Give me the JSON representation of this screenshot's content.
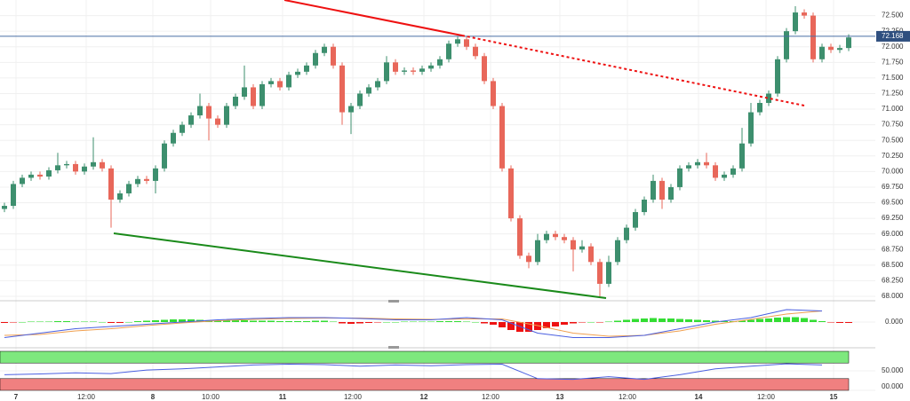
{
  "chart_data": [
    {
      "type": "candlestick",
      "up_color": "#3d8f6e",
      "down_color": "#e8675a",
      "open": [
        69.4,
        69.45,
        69.8,
        69.9,
        69.95,
        69.92,
        70.02,
        70.1,
        70.12,
        70.0,
        70.08,
        70.15,
        70.05,
        69.55,
        69.65,
        69.8,
        69.88,
        69.85,
        70.05,
        70.45,
        70.62,
        70.75,
        70.9,
        71.05,
        70.85,
        70.75,
        71.05,
        71.2,
        71.35,
        71.05,
        71.4,
        71.45,
        71.35,
        71.55,
        71.6,
        71.7,
        71.9,
        72.0,
        71.7,
        70.95,
        71.05,
        71.25,
        71.35,
        71.45,
        71.75,
        71.6,
        71.62,
        71.6,
        71.65,
        71.7,
        71.8,
        72.05,
        72.12,
        72.0,
        71.85,
        71.45,
        71.05,
        70.05,
        69.25,
        68.65,
        68.55,
        68.9,
        69.0,
        68.95,
        68.9,
        68.75,
        68.8,
        68.55,
        68.2,
        68.55,
        68.9,
        69.1,
        69.35,
        69.55,
        69.85,
        69.55,
        69.75,
        70.05,
        70.1,
        70.15,
        70.1,
        69.9,
        69.95,
        70.05,
        70.45,
        70.95,
        71.1,
        71.25,
        71.8,
        72.25,
        72.55,
        72.5,
        71.8,
        72.0,
        71.95,
        71.98
      ],
      "high": [
        69.5,
        69.85,
        69.95,
        70.0,
        70.0,
        70.07,
        70.3,
        70.17,
        70.17,
        70.13,
        70.55,
        70.2,
        70.1,
        69.7,
        69.85,
        69.93,
        69.93,
        70.1,
        70.5,
        70.67,
        70.8,
        70.95,
        71.25,
        71.1,
        70.9,
        71.1,
        71.25,
        71.7,
        71.4,
        71.45,
        71.5,
        71.5,
        71.6,
        71.65,
        71.75,
        71.95,
        72.05,
        72.05,
        71.75,
        71.1,
        71.3,
        71.4,
        71.5,
        71.85,
        71.8,
        71.67,
        71.67,
        71.7,
        71.75,
        71.85,
        72.1,
        72.17,
        72.17,
        72.05,
        71.9,
        71.5,
        71.1,
        70.1,
        69.3,
        68.7,
        69.0,
        69.05,
        69.05,
        69.0,
        68.95,
        68.9,
        68.85,
        68.6,
        68.65,
        68.95,
        69.15,
        69.4,
        69.6,
        69.95,
        69.9,
        69.8,
        70.1,
        70.15,
        70.2,
        70.3,
        70.15,
        70.0,
        70.1,
        70.7,
        71.1,
        71.15,
        71.3,
        71.85,
        72.3,
        72.65,
        72.6,
        72.55,
        72.05,
        72.05,
        72.03,
        72.2
      ],
      "low": [
        69.35,
        69.4,
        69.75,
        69.85,
        69.87,
        69.87,
        69.97,
        70.05,
        69.95,
        69.95,
        70.03,
        70.0,
        69.1,
        69.5,
        69.6,
        69.75,
        69.8,
        69.65,
        70.0,
        70.4,
        70.57,
        70.7,
        70.85,
        70.5,
        70.7,
        70.7,
        71.0,
        71.15,
        71.0,
        71.0,
        71.35,
        71.3,
        71.3,
        71.5,
        71.55,
        71.65,
        71.85,
        71.65,
        70.75,
        70.6,
        71.0,
        71.2,
        71.3,
        71.4,
        71.55,
        71.55,
        71.55,
        71.55,
        71.6,
        71.65,
        71.75,
        72.0,
        71.95,
        71.8,
        71.4,
        71.0,
        70.0,
        69.2,
        68.6,
        68.45,
        68.5,
        68.85,
        68.9,
        68.85,
        68.4,
        68.7,
        68.5,
        68.0,
        68.15,
        68.5,
        68.85,
        69.05,
        69.3,
        69.5,
        69.4,
        69.5,
        69.7,
        70.0,
        70.05,
        70.05,
        69.85,
        69.85,
        69.9,
        70.0,
        70.4,
        70.9,
        71.05,
        71.2,
        71.75,
        72.2,
        72.45,
        71.75,
        71.75,
        71.9,
        71.9,
        71.93
      ],
      "close": [
        69.45,
        69.8,
        69.9,
        69.95,
        69.92,
        70.02,
        70.1,
        70.12,
        70.0,
        70.08,
        70.15,
        70.05,
        69.55,
        69.65,
        69.8,
        69.88,
        69.85,
        70.05,
        70.45,
        70.62,
        70.75,
        70.9,
        71.05,
        70.85,
        70.75,
        71.05,
        71.2,
        71.35,
        71.05,
        71.4,
        71.45,
        71.35,
        71.55,
        71.6,
        71.7,
        71.9,
        72.0,
        71.7,
        70.95,
        71.05,
        71.25,
        71.35,
        71.45,
        71.75,
        71.6,
        71.62,
        71.6,
        71.65,
        71.7,
        71.8,
        72.05,
        72.12,
        72.0,
        71.85,
        71.45,
        71.05,
        70.05,
        69.25,
        68.65,
        68.55,
        68.9,
        69.0,
        68.95,
        68.9,
        68.75,
        68.8,
        68.55,
        68.2,
        68.55,
        68.9,
        69.1,
        69.35,
        69.55,
        69.85,
        69.55,
        69.75,
        70.05,
        70.1,
        70.15,
        70.1,
        69.9,
        69.95,
        70.05,
        70.45,
        70.95,
        71.1,
        71.25,
        71.8,
        72.25,
        72.55,
        72.5,
        71.8,
        72.0,
        71.95,
        71.98,
        72.15
      ],
      "ylim": [
        67.95,
        72.75
      ],
      "yticks": [
        {
          "value": 68,
          "label": "68.000"
        },
        {
          "value": 68.25,
          "label": "68.250"
        },
        {
          "value": 68.5,
          "label": "68.500"
        },
        {
          "value": 68.75,
          "label": "68.750"
        },
        {
          "value": 69,
          "label": "69.000"
        },
        {
          "value": 69.25,
          "label": "69.250"
        },
        {
          "value": 69.5,
          "label": "69.500"
        },
        {
          "value": 69.75,
          "label": "69.750"
        },
        {
          "value": 70,
          "label": "70.000"
        },
        {
          "value": 70.25,
          "label": "70.250"
        },
        {
          "value": 70.5,
          "label": "70.500"
        },
        {
          "value": 70.75,
          "label": "70.750"
        },
        {
          "value": 71,
          "label": "71.000"
        },
        {
          "value": 71.25,
          "label": "71.250"
        },
        {
          "value": 71.5,
          "label": "71.500"
        },
        {
          "value": 71.75,
          "label": "71.750"
        },
        {
          "value": 72,
          "label": "72.000"
        },
        {
          "value": 72.25,
          "label": "72.250"
        },
        {
          "value": 72.5,
          "label": "72.500"
        }
      ],
      "current_price": 72.168,
      "time_labels": [
        "7",
        "12:00",
        "8",
        "10:00",
        "11",
        "12:00",
        "12",
        "12:00",
        "13",
        "12:00",
        "14",
        "12:00",
        "15"
      ],
      "grid": true
    },
    {
      "type": "macd",
      "macd_color": "#4a5fe0",
      "signal_color": "#f0a050",
      "pos_color": "#33dd33",
      "neg_color": "#ee1111",
      "histogram": [
        -0.02,
        -0.01,
        0,
        0.01,
        0.01,
        0.01,
        0.02,
        0.02,
        0.01,
        0.01,
        0.01,
        0,
        -0.02,
        -0.02,
        0,
        0.02,
        0.03,
        0.04,
        0.05,
        0.06,
        0.06,
        0.06,
        0.05,
        0.04,
        0.03,
        0.03,
        0.04,
        0.04,
        0.03,
        0.03,
        0.03,
        0.02,
        0.02,
        0.02,
        0.02,
        0.03,
        0.03,
        0.01,
        -0.03,
        -0.04,
        -0.03,
        -0.02,
        -0.01,
        0,
        0,
        0.01,
        0.01,
        0.01,
        0.01,
        0.02,
        0.02,
        0.02,
        0.01,
        0,
        -0.03,
        -0.06,
        -0.12,
        -0.18,
        -0.22,
        -0.22,
        -0.18,
        -0.14,
        -0.1,
        -0.06,
        -0.03,
        -0.01,
        0,
        -0.01,
        0.01,
        0.03,
        0.05,
        0.07,
        0.08,
        0.09,
        0.08,
        0.08,
        0.07,
        0.06,
        0.05,
        0.04,
        0.03,
        0.02,
        0.02,
        0.03,
        0.05,
        0.07,
        0.08,
        0.1,
        0.11,
        0.11,
        0.09,
        0.05,
        0.02,
        -0.01,
        -0.02,
        -0.02
      ],
      "macd": [
        -0.35,
        -0.25,
        -0.15,
        -0.1,
        -0.05,
        0,
        0.05,
        0.08,
        0.1,
        0.1,
        0.08,
        0.05,
        0.05,
        0.1,
        0.05,
        -0.25,
        -0.35,
        -0.35,
        -0.3,
        -0.15,
        0,
        0.1,
        0.28,
        0.25
      ],
      "signal": [
        -0.3,
        -0.28,
        -0.2,
        -0.15,
        -0.08,
        -0.02,
        0.03,
        0.06,
        0.08,
        0.09,
        0.09,
        0.07,
        0.06,
        0.07,
        0.07,
        -0.08,
        -0.25,
        -0.32,
        -0.3,
        -0.2,
        -0.05,
        0.06,
        0.18,
        0.25
      ],
      "ylim": [
        -0.5,
        0.42
      ],
      "yticks": [
        {
          "value": 0,
          "label": "0.000"
        }
      ]
    },
    {
      "type": "line",
      "color": "#4a5fe0",
      "values": [
        40,
        42,
        45,
        43,
        52,
        55,
        60,
        65,
        67,
        66,
        62,
        65,
        63,
        66,
        67,
        30,
        28,
        35,
        28,
        40,
        55,
        62,
        68,
        65
      ],
      "bands": [
        {
          "from": 70,
          "to": 100,
          "color": "#7ee87e"
        },
        {
          "from": 0,
          "to": 30,
          "color": "#f08080"
        }
      ],
      "ylim": [
        0,
        100
      ],
      "yticks": [
        {
          "value": 50,
          "label": "50.000"
        },
        {
          "value": 0,
          "label": "00.000"
        }
      ]
    }
  ]
}
